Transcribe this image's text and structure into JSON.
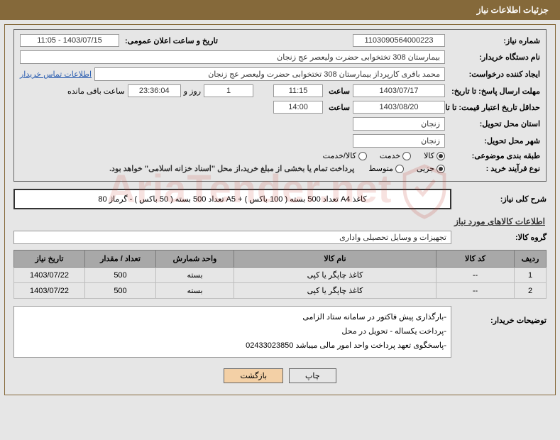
{
  "header": {
    "title": "جزئیات اطلاعات نیاز"
  },
  "fields": {
    "need_number": {
      "label": "شماره نیاز:",
      "value": "1103090564000223"
    },
    "announce_datetime": {
      "label": "تاریخ و ساعت اعلان عمومی:",
      "value": "1403/07/15 - 11:05"
    },
    "buyer_device": {
      "label": "نام دستگاه خریدار:",
      "value": "بیمارستان 308 تختخوابی حضرت ولیعصر عج  زنجان"
    },
    "request_creator": {
      "label": "ایجاد کننده درخواست:",
      "value": "محمد باقری کارپرداز بیمارستان 308 تختخوابی حضرت ولیعصر عج  زنجان"
    },
    "contact_link": "اطلاعات تماس خریدار",
    "response_deadline": {
      "label": "مهلت ارسال پاسخ: تا تاریخ:",
      "date": "1403/07/17",
      "time_label": "ساعت",
      "time": "11:15"
    },
    "remaining": {
      "days": "1",
      "day_label": "روز و",
      "time": "23:36:04",
      "suffix": "ساعت باقی مانده"
    },
    "price_validity": {
      "label": "حداقل تاریخ اعتبار قیمت: تا تاریخ:",
      "date": "1403/08/20",
      "time_label": "ساعت",
      "time": "14:00"
    },
    "delivery_province": {
      "label": "استان محل تحویل:",
      "value": "زنجان"
    },
    "delivery_city": {
      "label": "شهر محل تحویل:",
      "value": "زنجان"
    },
    "subject_class": {
      "label": "طبقه بندی موضوعی:",
      "options": [
        "کالا",
        "خدمت",
        "کالا/خدمت"
      ],
      "selected": 0
    },
    "purchase_type": {
      "label": "نوع فرآیند خرید :",
      "options": [
        "جزیی",
        "متوسط"
      ],
      "selected": 0,
      "note": "پرداخت تمام یا بخشی از مبلغ خرید،از محل \"اسناد خزانه اسلامی\" خواهد بود."
    },
    "general_desc": {
      "label": "شرح کلی نیاز:",
      "value": "کاغذ A4 تعداد 500 بسته ( 100 باکس ) +  A5  تعداد 500 بسته ( 50 باکس ) - گرماژ 80"
    }
  },
  "goods_section": {
    "title": "اطلاعات کالاهای مورد نیاز",
    "group_label": "گروه کالا:",
    "group_value": "تجهیزات و وسایل تحصیلی واداری"
  },
  "table": {
    "headers": [
      "ردیف",
      "کد کالا",
      "نام کالا",
      "واحد شمارش",
      "تعداد / مقدار",
      "تاریخ نیاز"
    ],
    "rows": [
      [
        "1",
        "--",
        "کاغذ چاپگر یا کپی",
        "بسته",
        "500",
        "1403/07/22"
      ],
      [
        "2",
        "--",
        "کاغذ چاپگر یا کپی",
        "بسته",
        "500",
        "1403/07/22"
      ]
    ]
  },
  "buyer_notes": {
    "label": "توضیحات خریدار:",
    "lines": [
      "-بارگذاری پیش فاکتور در سامانه ستاد الزامی",
      "-پرداخت یکساله - تحویل در محل",
      "-پاسخگوی تعهد پرداخت واحد امور مالی میباشد 02433023850"
    ]
  },
  "buttons": {
    "print": "چاپ",
    "back": "بازگشت"
  },
  "watermark": "AriaTender.net",
  "colors": {
    "header_bg": "#85693a",
    "bg": "#e6e6e6",
    "th_bg": "#a8a8a8",
    "link": "#2a5db0"
  }
}
